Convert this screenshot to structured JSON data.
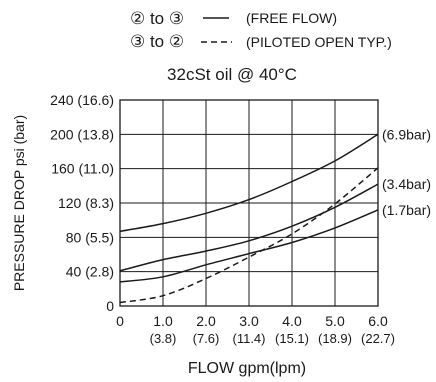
{
  "legend": {
    "solid_label": "② to ③",
    "solid_desc": "(FREE FLOW)",
    "dashed_label": "③ to ②",
    "dashed_desc": "(PILOTED OPEN TYP.)"
  },
  "chart_data": {
    "type": "line",
    "title": "32cSt oil @ 40°C",
    "xlabel": "FLOW gpm(lpm)",
    "ylabel": "PRESSURE DROP psi (bar)",
    "xlim": [
      0,
      6
    ],
    "ylim": [
      0,
      240
    ],
    "grid": true,
    "x_ticks": [
      {
        "value": 0,
        "label": "0",
        "sub": ""
      },
      {
        "value": 1,
        "label": "1.0",
        "sub": "(3.8)"
      },
      {
        "value": 2,
        "label": "2.0",
        "sub": "(7.6)"
      },
      {
        "value": 3,
        "label": "3.0",
        "sub": "(11.4)"
      },
      {
        "value": 4,
        "label": "4.0",
        "sub": "(15.1)"
      },
      {
        "value": 5,
        "label": "5.0",
        "sub": "(18.9)"
      },
      {
        "value": 6,
        "label": "6.0",
        "sub": "(22.7)"
      }
    ],
    "y_ticks": [
      {
        "value": 0,
        "label": "0"
      },
      {
        "value": 40,
        "label": "40 (2.8)"
      },
      {
        "value": 80,
        "label": "80 (5.5)"
      },
      {
        "value": 120,
        "label": "120 (8.3)"
      },
      {
        "value": 160,
        "label": "160 (11.0)"
      },
      {
        "value": 200,
        "label": "200 (13.8)"
      },
      {
        "value": 240,
        "label": "240 (16.6)"
      }
    ],
    "series": [
      {
        "name": "(6.9bar)",
        "style": "solid",
        "x": [
          0,
          1,
          2,
          3,
          4,
          5,
          6
        ],
        "y": [
          87,
          96,
          108,
          124,
          145,
          169,
          200
        ]
      },
      {
        "name": "(3.4bar)",
        "style": "solid",
        "x": [
          0,
          1,
          2,
          3,
          4,
          5,
          6
        ],
        "y": [
          41,
          54,
          64,
          76,
          93,
          115,
          142
        ]
      },
      {
        "name": "(1.7bar)",
        "style": "solid",
        "x": [
          0,
          1,
          2,
          3,
          4,
          5,
          6
        ],
        "y": [
          28,
          34,
          48,
          61,
          74,
          91,
          112
        ]
      },
      {
        "name": "",
        "style": "dashed",
        "x": [
          0,
          1,
          2,
          3,
          4,
          5,
          6
        ],
        "y": [
          4,
          12,
          32,
          57,
          84,
          119,
          161
        ]
      }
    ]
  }
}
